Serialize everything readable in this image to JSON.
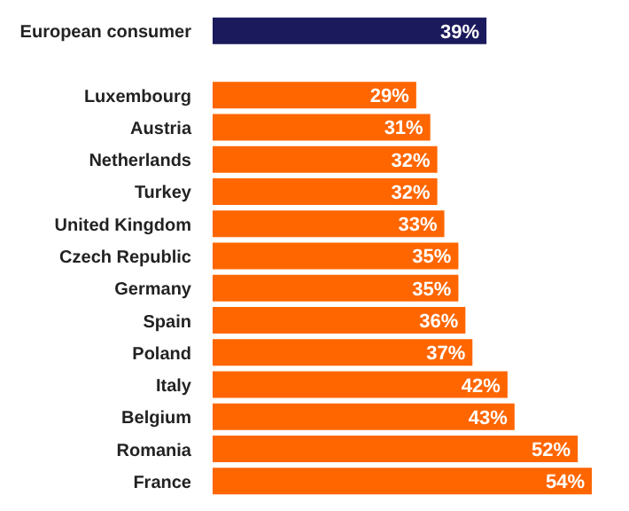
{
  "chart_data": {
    "type": "bar",
    "orientation": "horizontal",
    "categories": [
      "European consumer",
      null,
      "Luxembourg",
      "Austria",
      "Netherlands",
      "Turkey",
      "United Kingdom",
      "Czech Republic",
      "Germany",
      "Spain",
      "Poland",
      "Italy",
      "Belgium",
      "Romania",
      "France"
    ],
    "values": [
      39,
      null,
      29,
      31,
      32,
      32,
      33,
      35,
      35,
      36,
      37,
      42,
      43,
      52,
      54
    ],
    "value_labels": [
      "39%",
      null,
      "29%",
      "31%",
      "32%",
      "32%",
      "33%",
      "35%",
      "35%",
      "36%",
      "37%",
      "42%",
      "43%",
      "52%",
      "54%"
    ],
    "colors": [
      "#1b1a5c",
      null,
      "#ff6600",
      "#ff6600",
      "#ff6600",
      "#ff6600",
      "#ff6600",
      "#ff6600",
      "#ff6600",
      "#ff6600",
      "#ff6600",
      "#ff6600",
      "#ff6600",
      "#ff6600",
      "#ff6600"
    ],
    "grid": false,
    "legend": false
  }
}
